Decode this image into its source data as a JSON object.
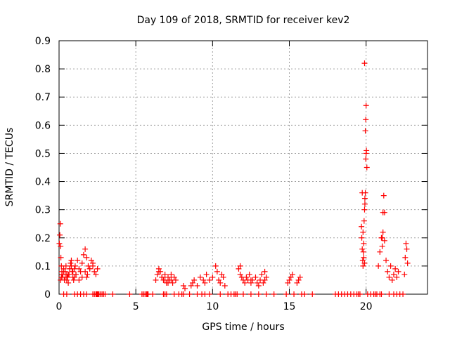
{
  "chart_data": {
    "type": "scatter",
    "title": "Day 109 of 2018, SRMTID for receiver kev2",
    "xlabel": "GPS time / hours",
    "ylabel": "SRMTID / TECUs",
    "xlim": [
      0,
      24
    ],
    "ylim": [
      0,
      0.9
    ],
    "xticks": [
      0,
      5,
      10,
      15,
      20
    ],
    "xtick_labels": [
      "0",
      "5",
      "10",
      "15",
      "20"
    ],
    "yticks": [
      0,
      0.1,
      0.2,
      0.3,
      0.4,
      0.5,
      0.6,
      0.7,
      0.8,
      0.9
    ],
    "ytick_labels": [
      "0",
      "0.1",
      "0.2",
      "0.3",
      "0.4",
      "0.5",
      "0.6",
      "0.7",
      "0.8",
      "0.9"
    ],
    "grid": true,
    "marker": "+",
    "colors": {
      "points": "#ff0000",
      "grid": "#a0a0a0",
      "axes": "#000000"
    },
    "series": [
      {
        "name": "SRMTID",
        "x": [
          0.02,
          0.05,
          0.08,
          0.1,
          0.12,
          0.15,
          0.18,
          0.2,
          0.25,
          0.3,
          0.35,
          0.4,
          0.45,
          0.5,
          0.55,
          0.6,
          0.65,
          0.7,
          0.75,
          0.8,
          0.85,
          0.9,
          0.95,
          1.0,
          1.05,
          1.1,
          1.2,
          1.3,
          1.4,
          1.5,
          1.6,
          1.7,
          1.8,
          1.9,
          2.0,
          2.1,
          2.2,
          2.3,
          2.4,
          2.5,
          0.1,
          0.15,
          0.2,
          0.3,
          0.4,
          0.5,
          0.6,
          0.7,
          0.8,
          0.9,
          1.0,
          1.1,
          1.3,
          1.5,
          1.7,
          1.8,
          1.85,
          2.0,
          2.2,
          6.3,
          6.4,
          6.5,
          6.6,
          6.7,
          6.8,
          6.9,
          7.0,
          7.1,
          7.2,
          7.3,
          7.4,
          7.5,
          7.6,
          6.5,
          6.7,
          6.9,
          7.1,
          7.3,
          8.1,
          8.2,
          8.6,
          8.7,
          8.8,
          9.0,
          9.2,
          9.4,
          9.5,
          9.6,
          9.8,
          10.0,
          10.2,
          10.3,
          10.4,
          10.5,
          10.6,
          10.7,
          10.8,
          11.7,
          11.8,
          11.9,
          12.0,
          12.1,
          12.2,
          12.3,
          12.4,
          12.5,
          12.6,
          12.8,
          12.9,
          13.0,
          13.1,
          13.2,
          13.3,
          13.4,
          13.5,
          11.8,
          12.5,
          13.4,
          14.9,
          15.0,
          15.1,
          15.2,
          15.5,
          15.6,
          15.7,
          19.7,
          19.72,
          19.75,
          19.78,
          19.8,
          19.82,
          19.85,
          19.87,
          19.9,
          19.92,
          19.95,
          19.98,
          20.0,
          20.02,
          20.05,
          19.75,
          19.8,
          19.85,
          19.9,
          19.95,
          19.98,
          20.0,
          19.9,
          19.92,
          20.8,
          20.9,
          21.0,
          21.05,
          21.1,
          21.15,
          21.2,
          21.3,
          21.4,
          21.5,
          21.6,
          21.7,
          21.8,
          21.9,
          22.0,
          22.1,
          21.05,
          21.1,
          21.2,
          22.5,
          22.55,
          22.6,
          22.65,
          22.7
        ],
        "y": [
          0.18,
          0.21,
          0.25,
          0.17,
          0.13,
          0.1,
          0.08,
          0.07,
          0.06,
          0.09,
          0.05,
          0.08,
          0.1,
          0.07,
          0.06,
          0.04,
          0.07,
          0.09,
          0.11,
          0.12,
          0.08,
          0.06,
          0.05,
          0.09,
          0.1,
          0.07,
          0.12,
          0.09,
          0.08,
          0.11,
          0.14,
          0.16,
          0.13,
          0.1,
          0.09,
          0.12,
          0.11,
          0.08,
          0.07,
          0.09,
          0.05,
          0.06,
          0.07,
          0.08,
          0.06,
          0.05,
          0.07,
          0.09,
          0.1,
          0.08,
          0.06,
          0.07,
          0.05,
          0.06,
          0.08,
          0.06,
          0.07,
          0.09,
          0.1,
          0.05,
          0.07,
          0.09,
          0.08,
          0.06,
          0.05,
          0.07,
          0.04,
          0.06,
          0.05,
          0.07,
          0.04,
          0.06,
          0.05,
          0.08,
          0.06,
          0.05,
          0.04,
          0.05,
          0.03,
          0.02,
          0.03,
          0.04,
          0.05,
          0.03,
          0.06,
          0.05,
          0.04,
          0.07,
          0.05,
          0.06,
          0.1,
          0.08,
          0.05,
          0.04,
          0.07,
          0.06,
          0.03,
          0.09,
          0.07,
          0.06,
          0.05,
          0.04,
          0.06,
          0.05,
          0.07,
          0.04,
          0.05,
          0.06,
          0.04,
          0.03,
          0.05,
          0.07,
          0.04,
          0.05,
          0.06,
          0.1,
          0.05,
          0.08,
          0.04,
          0.05,
          0.06,
          0.07,
          0.04,
          0.05,
          0.06,
          0.24,
          0.2,
          0.16,
          0.12,
          0.1,
          0.15,
          0.18,
          0.26,
          0.3,
          0.32,
          0.36,
          0.48,
          0.5,
          0.51,
          0.45,
          0.36,
          0.22,
          0.13,
          0.11,
          0.58,
          0.62,
          0.67,
          0.82,
          0.34,
          0.1,
          0.15,
          0.2,
          0.17,
          0.29,
          0.35,
          0.29,
          0.12,
          0.08,
          0.06,
          0.1,
          0.05,
          0.07,
          0.09,
          0.06,
          0.08,
          0.2,
          0.22,
          0.19,
          0.07,
          0.13,
          0.18,
          0.16,
          0.11
        ],
        "zeros_x": [
          0.3,
          0.5,
          1.0,
          1.2,
          1.4,
          1.6,
          1.8,
          2.2,
          2.3,
          2.4,
          2.45,
          2.5,
          2.55,
          2.6,
          2.7,
          2.8,
          2.9,
          3.0,
          3.5,
          4.6,
          5.4,
          5.5,
          5.6,
          5.7,
          5.75,
          5.8,
          6.1,
          6.8,
          6.9,
          7.0,
          7.5,
          7.8,
          8.0,
          8.1,
          8.5,
          9.0,
          9.3,
          9.5,
          9.8,
          10.5,
          11.0,
          11.2,
          11.4,
          11.5,
          11.6,
          12.0,
          12.5,
          13.0,
          13.5,
          14.0,
          14.8,
          15.3,
          15.8,
          16.0,
          16.5,
          18.0,
          18.2,
          18.4,
          18.6,
          18.8,
          19.0,
          19.2,
          19.4,
          19.5,
          19.6,
          20.1,
          20.3,
          20.5,
          20.6,
          20.7,
          20.9,
          21.0,
          21.5,
          21.8,
          22.0,
          22.2,
          22.4
        ]
      }
    ]
  }
}
